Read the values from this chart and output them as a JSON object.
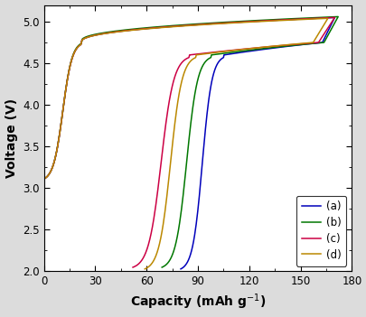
{
  "title": "",
  "xlabel": "Capacity (mAh g$^{-1}$)",
  "ylabel": "Voltage (V)",
  "xlim": [
    0,
    180
  ],
  "ylim": [
    2.0,
    5.2
  ],
  "xticks": [
    0,
    30,
    60,
    90,
    120,
    150,
    180
  ],
  "yticks": [
    2.0,
    2.5,
    3.0,
    3.5,
    4.0,
    4.5,
    5.0
  ],
  "background_color": "#dcdcdc",
  "plot_bg_color": "#ffffff",
  "legend_labels": [
    "(a)",
    "(b)",
    "(c)",
    "(d)"
  ],
  "colors": {
    "a": "#0000bb",
    "b": "#007700",
    "c": "#cc0044",
    "d": "#bb8800"
  },
  "linewidth": 1.1,
  "curves": {
    "a": {
      "charge_end": 170,
      "disch_cap": 90,
      "v_start": 3.08,
      "v_peak": 4.76,
      "v_charge_max": 5.05,
      "v_disch_end": 2.0
    },
    "b": {
      "charge_end": 172,
      "disch_cap": 103,
      "v_start": 3.08,
      "v_peak": 4.77,
      "v_charge_max": 5.06,
      "v_disch_end": 2.02
    },
    "c": {
      "charge_end": 170,
      "disch_cap": 118,
      "v_start": 3.08,
      "v_peak": 4.76,
      "v_charge_max": 5.05,
      "v_disch_end": 2.02
    },
    "d": {
      "charge_end": 166,
      "disch_cap": 107,
      "v_start": 3.08,
      "v_peak": 4.76,
      "v_charge_max": 5.04,
      "v_disch_end": 2.0
    }
  }
}
